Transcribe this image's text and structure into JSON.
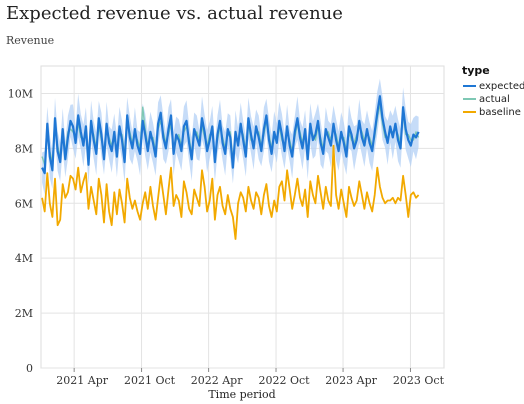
{
  "chart_data": {
    "type": "line",
    "title": "Expected revenue vs. actual revenue",
    "subtitle": "Revenue",
    "xlabel": "Time period",
    "ylabel": "",
    "xlim": [
      "2021-01-01",
      "2023-12-31"
    ],
    "ylim": [
      0,
      11000000
    ],
    "x_tick_labels": [
      "2021 Apr",
      "2021 Oct",
      "2022 Apr",
      "2022 Oct",
      "2023 Apr",
      "2023 Oct"
    ],
    "x_tick_dates": [
      "2021-04-01",
      "2021-10-01",
      "2022-04-01",
      "2022-10-01",
      "2023-04-01",
      "2023-10-01"
    ],
    "y_ticks": [
      0,
      2000000,
      4000000,
      6000000,
      8000000,
      10000000
    ],
    "y_tick_labels": [
      "0",
      "2M",
      "4M",
      "6M",
      "8M",
      "10M"
    ],
    "grid": true,
    "legend": {
      "title": "type",
      "position": "right",
      "entries": [
        {
          "name": "expected",
          "color": "#1f77d4"
        },
        {
          "name": "actual",
          "color": "#7ec8b4"
        },
        {
          "name": "baseline",
          "color": "#f2a900"
        }
      ]
    },
    "band_color": "#b3d0f5",
    "series": [
      {
        "name": "expected",
        "color": "#1f77d4",
        "points_per_week": true,
        "start": "2021-01-04",
        "values": [
          7300000,
          7100000,
          8900000,
          7700000,
          7200000,
          9100000,
          7900000,
          7500000,
          8700000,
          7600000,
          8400000,
          9000000,
          8800000,
          8200000,
          9200000,
          8600000,
          8100000,
          8800000,
          7400000,
          9000000,
          8300000,
          7800000,
          9100000,
          8500000,
          7600000,
          8900000,
          8200000,
          7900000,
          8600000,
          7700000,
          8800000,
          8300000,
          7500000,
          9200000,
          8400000,
          8000000,
          8700000,
          8100000,
          7800000,
          9000000,
          8500000,
          7900000,
          8600000,
          8200000,
          7700000,
          8900000,
          9300000,
          8400000,
          8000000,
          8700000,
          9200000,
          7800000,
          8500000,
          8300000,
          7900000,
          8800000,
          9000000,
          8200000,
          7600000,
          8700000,
          8400000,
          8100000,
          9100000,
          8600000,
          7900000,
          8300000,
          8800000,
          7500000,
          8500000,
          9000000,
          8200000,
          7800000,
          8700000,
          8400000,
          7300000,
          8600000,
          8100000,
          8900000,
          8300000,
          7700000,
          9100000,
          8500000,
          8000000,
          8800000,
          8400000,
          7900000,
          8700000,
          9200000,
          8300000,
          7800000,
          8600000,
          8200000,
          9000000,
          8500000,
          7900000,
          8800000,
          8100000,
          7700000,
          8600000,
          9100000,
          8400000,
          8000000,
          8700000,
          7600000,
          8900000,
          8300000,
          8500000,
          9000000,
          8200000,
          7800000,
          8700000,
          8400000,
          8100000,
          8900000,
          8300000,
          7900000,
          8600000,
          8200000,
          7700000,
          8800000,
          8500000,
          8000000,
          8300000,
          9000000,
          8400000,
          8100000,
          8700000,
          8200000,
          7900000,
          8600000,
          9300000,
          9900000,
          9100000,
          8600000,
          8200000,
          8800000,
          8400000,
          8900000,
          8300000,
          8000000,
          9500000,
          8700000,
          8300000,
          8100000,
          8500000,
          8400000,
          8600000
        ]
      },
      {
        "name": "actual",
        "color": "#7ec8b4",
        "points_per_week": true,
        "start": "2021-01-04",
        "values": [
          7700000,
          7400000,
          8600000,
          7900000,
          7500000,
          8800000,
          8100000,
          7700000,
          8500000,
          7800000,
          8600000,
          8700000,
          8600000,
          8400000,
          8900000,
          8400000,
          8300000,
          8600000,
          7700000,
          8700000,
          8500000,
          8000000,
          8800000,
          8300000,
          7900000,
          8700000,
          8400000,
          8100000,
          8400000,
          7900000,
          8600000,
          8500000,
          7800000,
          8900000,
          8600000,
          8200000,
          8500000,
          8300000,
          8000000,
          9500000,
          8700000,
          8100000,
          8400000,
          8400000,
          7900000,
          8700000,
          9000000,
          8600000,
          8200000,
          8500000,
          8900000,
          8000000,
          8300000,
          8500000,
          8100000,
          8600000,
          8800000,
          8400000,
          7800000,
          8500000,
          8600000,
          8300000,
          8800000,
          8400000,
          8100000,
          8500000,
          8600000,
          7800000,
          8300000,
          8800000,
          8400000,
          8000000,
          8500000,
          8600000,
          7600000,
          8400000,
          8300000,
          8700000,
          8500000,
          7900000,
          8900000,
          8300000,
          8200000,
          8600000,
          8600000,
          8100000,
          8500000,
          9000000,
          8500000,
          8000000,
          8400000,
          8400000,
          8800000,
          8300000,
          8100000,
          8600000,
          8300000,
          7900000,
          8400000,
          8900000,
          8600000,
          8200000,
          8500000,
          7800000,
          8700000,
          8500000,
          8300000,
          8800000,
          8400000,
          8000000,
          8500000,
          8600000,
          8300000,
          8700000,
          8500000,
          8100000,
          8400000,
          8400000,
          7900000,
          8600000,
          8300000,
          8200000,
          8500000,
          8800000,
          8600000,
          8300000,
          8500000,
          8400000,
          8100000,
          8400000,
          9100000,
          9600000,
          8900000,
          8400000,
          8400000,
          8600000,
          8600000,
          8700000,
          8500000,
          8200000,
          9300000,
          8500000,
          8500000,
          8300000,
          8300000,
          8600000,
          8400000
        ]
      },
      {
        "name": "baseline",
        "color": "#f2a900",
        "points_per_week": true,
        "start": "2021-01-04",
        "values": [
          6200000,
          5700000,
          7100000,
          6000000,
          5500000,
          6900000,
          5200000,
          5400000,
          6700000,
          6200000,
          6400000,
          7000000,
          6900000,
          6500000,
          7300000,
          6400000,
          6800000,
          7100000,
          5800000,
          6600000,
          6100000,
          5600000,
          6900000,
          6300000,
          5300000,
          6700000,
          5700000,
          5200000,
          6400000,
          5600000,
          6500000,
          6000000,
          5300000,
          6900000,
          6200000,
          5800000,
          6100000,
          5700000,
          5400000,
          6000000,
          6400000,
          5800000,
          6600000,
          5900000,
          5400000,
          6200000,
          7000000,
          6300000,
          5600000,
          6500000,
          7300000,
          5900000,
          6300000,
          6100000,
          5500000,
          6800000,
          6400000,
          5800000,
          5600000,
          6500000,
          6200000,
          5900000,
          7200000,
          6600000,
          5700000,
          6100000,
          6900000,
          5400000,
          6300000,
          6600000,
          5900000,
          5600000,
          6300000,
          5800000,
          5500000,
          4700000,
          6000000,
          6400000,
          6200000,
          5700000,
          6600000,
          6100000,
          5800000,
          6400000,
          6200000,
          5600000,
          6300000,
          6700000,
          5900000,
          5500000,
          6100000,
          5700000,
          6600000,
          6800000,
          6100000,
          7200000,
          6500000,
          5800000,
          6300000,
          6900000,
          6200000,
          5900000,
          6500000,
          5500000,
          6800000,
          6300000,
          6000000,
          7000000,
          6400000,
          5800000,
          6600000,
          6100000,
          5900000,
          8100000,
          6300000,
          5800000,
          6500000,
          6000000,
          5500000,
          6600000,
          6200000,
          5900000,
          6100000,
          6800000,
          6300000,
          5800000,
          6400000,
          6000000,
          5700000,
          6300000,
          7300000,
          6600000,
          6200000,
          6000000,
          6100000,
          6100000,
          6200000,
          6000000,
          6200000,
          6100000,
          7000000,
          6300000,
          5500000,
          6300000,
          6400000,
          6200000,
          6300000
        ]
      }
    ]
  }
}
